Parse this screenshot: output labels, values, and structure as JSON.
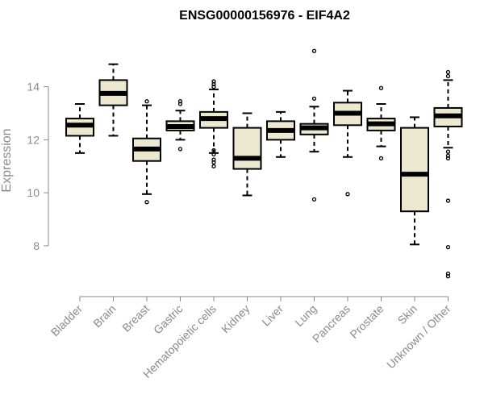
{
  "chart_data": {
    "type": "boxplot",
    "title": "ENSG00000156976 - EIF4A2",
    "xlabel": "",
    "ylabel": "Expression",
    "ylim": [
      6.6,
      15.6
    ],
    "yticks": [
      8,
      10,
      12,
      14
    ],
    "box_color": "#ede8d0",
    "line_color": "#000000",
    "axis_color": "#8a8a8a",
    "categories": [
      "Bladder",
      "Brain",
      "Breast",
      "Gastric",
      "Hematopoietic cells",
      "Kidney",
      "Liver",
      "Lung",
      "Pancreas",
      "Prostate",
      "Skin",
      "Unknown / Other"
    ],
    "boxes": [
      {
        "name": "Bladder",
        "whisker_low": 11.5,
        "q1": 12.15,
        "median": 12.55,
        "q3": 12.8,
        "whisker_high": 13.35,
        "outliers": []
      },
      {
        "name": "Brain",
        "whisker_low": 12.15,
        "q1": 13.3,
        "median": 13.75,
        "q3": 14.25,
        "whisker_high": 14.85,
        "outliers": []
      },
      {
        "name": "Breast",
        "whisker_low": 9.95,
        "q1": 11.2,
        "median": 11.65,
        "q3": 12.05,
        "whisker_high": 13.3,
        "outliers": [
          9.65,
          13.45
        ]
      },
      {
        "name": "Gastric",
        "whisker_low": 12.0,
        "q1": 12.35,
        "median": 12.5,
        "q3": 12.7,
        "whisker_high": 13.1,
        "outliers": [
          11.65,
          13.35,
          13.45
        ]
      },
      {
        "name": "Hematopoietic cells",
        "whisker_low": 11.5,
        "q1": 12.45,
        "median": 12.8,
        "q3": 13.05,
        "whisker_high": 13.9,
        "outliers": [
          11.0,
          11.15,
          11.25,
          11.45,
          11.6,
          14.0,
          14.1,
          14.2
        ]
      },
      {
        "name": "Kidney",
        "whisker_low": 9.9,
        "q1": 10.9,
        "median": 11.3,
        "q3": 12.45,
        "whisker_high": 13.0,
        "outliers": []
      },
      {
        "name": "Liver",
        "whisker_low": 11.35,
        "q1": 12.0,
        "median": 12.35,
        "q3": 12.7,
        "whisker_high": 13.05,
        "outliers": []
      },
      {
        "name": "Lung",
        "whisker_low": 11.55,
        "q1": 12.2,
        "median": 12.45,
        "q3": 12.6,
        "whisker_high": 13.25,
        "outliers": [
          9.75,
          13.55,
          15.35
        ]
      },
      {
        "name": "Pancreas",
        "whisker_low": 11.35,
        "q1": 12.55,
        "median": 13.0,
        "q3": 13.4,
        "whisker_high": 13.85,
        "outliers": [
          9.95
        ]
      },
      {
        "name": "Prostate",
        "whisker_low": 11.75,
        "q1": 12.35,
        "median": 12.6,
        "q3": 12.8,
        "whisker_high": 13.35,
        "outliers": [
          11.3,
          13.95
        ]
      },
      {
        "name": "Skin",
        "whisker_low": 8.05,
        "q1": 9.3,
        "median": 10.7,
        "q3": 12.45,
        "whisker_high": 12.85,
        "outliers": []
      },
      {
        "name": "Unknown / Other",
        "whisker_low": 11.7,
        "q1": 12.5,
        "median": 12.9,
        "q3": 13.2,
        "whisker_high": 14.25,
        "outliers": [
          6.85,
          6.95,
          7.95,
          9.7,
          11.3,
          11.4,
          11.55,
          14.4,
          14.55
        ]
      }
    ]
  }
}
